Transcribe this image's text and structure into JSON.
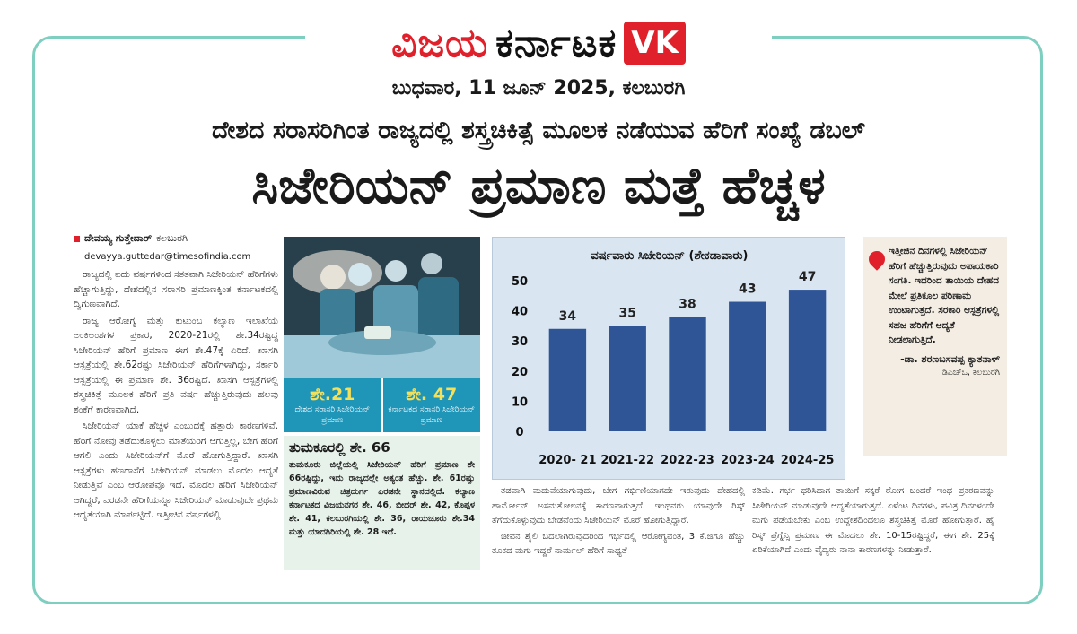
{
  "masthead": {
    "part1": "ವಿಜಯ",
    "part2": "ಕರ್ನಾಟಕ",
    "badge": "VK"
  },
  "dateline": "ಬುಧವಾರ, 11 ಜೂನ್ 2025, ಕಲಬುರಗಿ",
  "subhead": "ದೇಶದ ಸರಾಸರಿಗಿಂತ ರಾಜ್ಯದಲ್ಲಿ ಶಸ್ತ್ರಚಿಕಿತ್ಸೆ ಮೂಲಕ ನಡೆಯುವ ಹೆರಿಗೆ ಸಂಖ್ಯೆ ಡಬಲ್",
  "headline": "ಸಿಜೇರಿಯನ್ ಪ್ರಮಾಣ ಮತ್ತೆ ಹೆಚ್ಚಳ",
  "byline": {
    "name": "ದೇವಯ್ಯ ಗುತ್ತೇದಾರ್",
    "place": "ಕಲಬುರಗಿ",
    "email": "devayya.guttedar@timesofindia.com"
  },
  "col1_paragraphs": [
    "ರಾಜ್ಯದಲ್ಲಿ ಐದು ವರ್ಷಗಳಿಂದ ಸತತವಾಗಿ ಸಿಜೇರಿಯನ್ ಹೆರಿಗೆಗಳು ಹೆಚ್ಚಾಗುತ್ತಿದ್ದು, ದೇಶದಲ್ಲಿನ ಸರಾಸರಿ ಪ್ರಮಾಣಕ್ಕಿಂತ ಕರ್ನಾಟಕದಲ್ಲಿ ದ್ವಿಗುಣವಾಗಿದೆ.",
    "ರಾಜ್ಯ ಆರೋಗ್ಯ ಮತ್ತು ಕುಟುಂಬ ಕಲ್ಯಾಣ ಇಲಾಖೆಯ ಅಂಕಿಅಂಶಗಳ ಪ್ರಕಾರ, 2020-21ರಲ್ಲಿ ಶೇ.34ರಷ್ಟಿದ್ದ ಸಿಜೇರಿಯನ್ ಹೆರಿಗೆ ಪ್ರಮಾಣ ಈಗ ಶೇ.47ಕ್ಕೆ ಏರಿದೆ. ಖಾಸಗಿ ಆಸ್ಪತ್ರೆಯಲ್ಲಿ ಶೇ.62ರಷ್ಟು ಸಿಜೇರಿಯನ್ ಹೆರಿಗೆಗಳಾಗಿದ್ದು, ಸರ್ಕಾರಿ ಆಸ್ಪತ್ರೆಯಲ್ಲಿ ಈ ಪ್ರಮಾಣ ಶೇ. 36ರಷ್ಟಿದೆ. ಖಾಸಗಿ ಆಸ್ಪತ್ರೆಗಳಲ್ಲಿ ಶಸ್ತ್ರಚಿಕಿತ್ಸೆ ಮೂಲಕ ಹೆರಿಗೆ ಪ್ರತಿ ವರ್ಷ ಹೆಚ್ಚುತ್ತಿರುವುದು ಹಲವು ಶಂಕೆಗೆ ಕಾರಣವಾಗಿದೆ.",
    "ಸಿಜೇರಿಯನ್ ಯಾಕೆ ಹೆಚ್ಚಳ ಎಂಬುದಕ್ಕೆ ಹತ್ತಾರು ಕಾರಣಗಳಿವೆ. ಹೆರಿಗೆ ನೋವು ತಡೆದುಕೊಳ್ಳಲು ಮಾತೆಯರಿಗೆ ಆಗುತ್ತಿಲ್ಲ, ಬೇಗ ಹೆರಿಗೆ ಆಗಲಿ ಎಂದು ಸಿಜೇರಿಯನ್‌ಗೆ ಮೊರೆ ಹೋಗುತ್ತಿದ್ದಾರೆ. ಖಾಸಗಿ ಆಸ್ಪತ್ರೆಗಳು ಹಣದಾಸೆಗೆ ಸಿಜೇರಿಯನ್ ಮಾಡಲು ಮೊದಲ ಆದ್ಯತೆ ನೀಡುತ್ತಿವೆ ಎಂಬ ಆರೋಪವೂ ಇದೆ. ಮೊದಲ ಹೆರಿಗೆ ಸಿಜೇರಿಯನ್ ಆಗಿದ್ದರೆ, ಎರಡನೇ ಹೆರಿಗೆಯನ್ನೂ ಸಿಜೇರಿಯನ್ ಮಾಡುವುದೇ ಪ್ರಥಮ ಆದ್ಯತೆಯಾಗಿ ಮಾರ್ಪಟ್ಟಿದೆ. ಇತ್ತೀಚಿನ ವರ್ಷಗಳಲ್ಲಿ"
  ],
  "stats": [
    {
      "value": "ಶೇ.21",
      "label": "ದೇಶದ ಸರಾಸರಿ ಸಿಜೇರಿಯನ್ ಪ್ರಮಾಣ"
    },
    {
      "value": "ಶೇ. 47",
      "label": "ಕರ್ನಾಟಕದ ಸರಾಸರಿ ಸಿಜೇರಿಯನ್ ಪ್ರಮಾಣ"
    }
  ],
  "tumkur": {
    "title": "ತುಮಕೂರಲ್ಲಿ ಶೇ. 66",
    "body": "ತುಮಕೂರು ಜಿಲ್ಲೆಯಲ್ಲಿ ಸಿಜೇರಿಯನ್ ಹೆರಿಗೆ ಪ್ರಮಾಣ ಶೇ 66ರಷ್ಟಿದ್ದು, ಇದು ರಾಜ್ಯದಲ್ಲೇ ಅತ್ಯಂತ ಹೆಚ್ಚು. ಶೇ. 61ರಷ್ಟು ಪ್ರಮಾಣವಿರುವ ಚಿತ್ರದುರ್ಗ ಎರಡನೇ ಸ್ಥಾನದಲ್ಲಿದೆ. ಕಲ್ಯಾಣ ಕರ್ನಾಟಕದ ವಿಜಯನಗರ ಶೇ. 46, ಬೀದರ್ ಶೇ. 42, ಕೊಪ್ಪಳ ಶೇ. 41, ಕಲಬುರಗಿಯಲ್ಲಿ ಶೇ. 36, ರಾಯಚೂರು ಶೇ.34 ಮತ್ತು ಯಾದಗಿರಿಯಲ್ಲಿ ಶೇ. 28 ಇದೆ."
  },
  "chart_data": {
    "type": "bar",
    "title": "ವರ್ಷವಾರು ಸಿಜೇರಿಯನ್ (ಶೇಕಡಾವಾರು)",
    "categories": [
      "2020- 21",
      "2021-22",
      "2022-23",
      "2023-24",
      "2024-25"
    ],
    "values": [
      34,
      35,
      38,
      43,
      47
    ],
    "ylim": [
      0,
      50
    ],
    "yticks": [
      0,
      10,
      20,
      30,
      40,
      50
    ],
    "grid": false,
    "bar_color": "#2f5597"
  },
  "col3_paragraphs": [
    "ತಡವಾಗಿ ಮದುವೆಯಾಗುವುದು, ಬೇಗ ಗರ್ಭಿಣಿಯಾಗದೇ ಇರುವುದು ದೇಹದಲ್ಲಿ ಹಾರ್ಮೋನ್ ಅಸಮತೋಲನಕ್ಕೆ ಕಾರಣವಾಗುತ್ತದೆ. ಇಂಥವರು ಯಾವುದೇ ರಿಸ್ಕ್ ತೆಗೆದುಕೊಳ್ಳುವುದು ಬೇಡವೆಂದು ಸಿಜೇರಿಯನ್ ಮೊರೆ ಹೋಗುತ್ತಿದ್ದಾರೆ.",
    "ಜೀವನ ಶೈಲಿ ಬದಲಾಗಿರುವುದರಿಂದ ಗರ್ಭದಲ್ಲಿ ಆರೋಗ್ಯವಂತ, 3 ಕೆ.ಜಿಗೂ ಹೆಚ್ಚು ತೂಕದ ಮಗು ಇದ್ದರೆ ನಾರ್ಮಲ್ ಹೆರಿಗೆ ಸಾಧ್ಯತೆ"
  ],
  "col4_paragraph": "ಕಡಿಮೆ. ಗರ್ಭ ಧರಿಸಿದಾಗ ತಾಯಿಗೆ ಸಕ್ಕರೆ ರೋಗ ಬಂದರೆ ಇಂಥ ಪ್ರಕರಣವನ್ನು ಸಿಜೇರಿಯನ್ ಮಾಡುವುದೇ ಆದ್ಯತೆಯಾಗುತ್ತದೆ. ಏಳೆಂಟ ದಿನಗಳು, ಪವಿತ್ರ ದಿನಗಳಂದೇ ಮಗು ಪಡೆಯಬೇಕು ಎಂಬ ಉದ್ದೇಶದಿಂದಲೂ ಶಸ್ತ್ರಚಿಕಿತ್ಸೆ ಮೊರೆ ಹೋಗುತ್ತಾರೆ. ಹೈ ರಿಸ್ಕ್ ಪ್ರೆಗ್ನೆನ್ಸಿ ಪ್ರಮಾಣ ಈ ಮೊದಲು ಶೇ. 10-15ರಷ್ಟಿದ್ದರೆ, ಈಗ ಶೇ. 25ಕ್ಕೆ ಏರಿಕೆಯಾಗಿದೆ ಎಂದು ವೈದ್ಯರು ನಾನಾ ಕಾರಣಗಳನ್ನು ನೀಡುತ್ತಾರೆ.",
  "quote": {
    "text": "ಇತ್ತೀಚಿನ ದಿನಗಳಲ್ಲಿ ಸಿಜೇರಿಯನ್ ಹೆರಿಗೆ ಹೆಚ್ಚುತ್ತಿರುವುದು ಅಪಾಯಕಾರಿ ಸಂಗತಿ. ಇದರಿಂದ ತಾಯಿಯ ದೇಹದ ಮೇಲೆ ಪ್ರತಿಕೂಲ ಪರಿಣಾಮ ಉಂಟಾಗುತ್ತದೆ. ಸರಕಾರಿ ಆಸ್ಪತ್ರೆಗಳಲ್ಲಿ ಸಹಜ ಹೆರಿಗೆಗೆ ಆದ್ಯತೆ ನೀಡಲಾಗುತ್ತಿದೆ.",
    "author": "-ಡಾ. ಶರಣಬಸವಪ್ಪ ಕ್ಯಾತನಾಳ್",
    "role": "ಡಿಎಚ್‌ಒ, ಕಲಬುರಗಿ"
  },
  "colors": {
    "brand_red": "#e0202a",
    "frame": "#7fcfc0",
    "stat_box": "#1f95b8",
    "chart_bg": "#d9e6f2"
  }
}
